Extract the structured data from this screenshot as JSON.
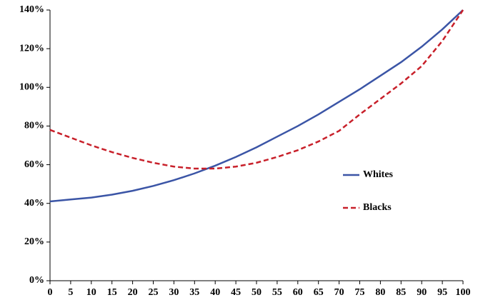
{
  "chart_data": {
    "type": "line",
    "x": [
      0,
      5,
      10,
      15,
      20,
      25,
      30,
      35,
      40,
      45,
      50,
      55,
      60,
      65,
      70,
      75,
      80,
      85,
      90,
      95,
      100
    ],
    "series": [
      {
        "name": "Whites",
        "color": "#3b55a6",
        "dash": false,
        "values": [
          41,
          42,
          43,
          44.5,
          46.5,
          49,
          52,
          55.5,
          59.5,
          64,
          69,
          74.5,
          80,
          86,
          92.5,
          99,
          106,
          113,
          121,
          130,
          140
        ]
      },
      {
        "name": "Blacks",
        "color": "#c8202a",
        "dash": true,
        "values": [
          78,
          74,
          70,
          66.5,
          63.5,
          61,
          59,
          58,
          58,
          59,
          61,
          64,
          67.5,
          72,
          77.5,
          86,
          94,
          102,
          111,
          124,
          140
        ]
      }
    ],
    "xlim": [
      0,
      100
    ],
    "xticks": [
      0,
      5,
      10,
      15,
      20,
      25,
      30,
      35,
      40,
      45,
      50,
      55,
      60,
      65,
      70,
      75,
      80,
      85,
      90,
      95,
      100
    ],
    "ylim": [
      0,
      140
    ],
    "yticks": [
      {
        "value": 0,
        "label": "0%"
      },
      {
        "value": 20,
        "label": "20%"
      },
      {
        "value": 40,
        "label": "40%"
      },
      {
        "value": 60,
        "label": "60%"
      },
      {
        "value": 80,
        "label": "80%"
      },
      {
        "value": 100,
        "label": "100%"
      },
      {
        "value": 120,
        "label": "120%"
      },
      {
        "value": 140,
        "label": "140%"
      }
    ],
    "legend": "right"
  }
}
